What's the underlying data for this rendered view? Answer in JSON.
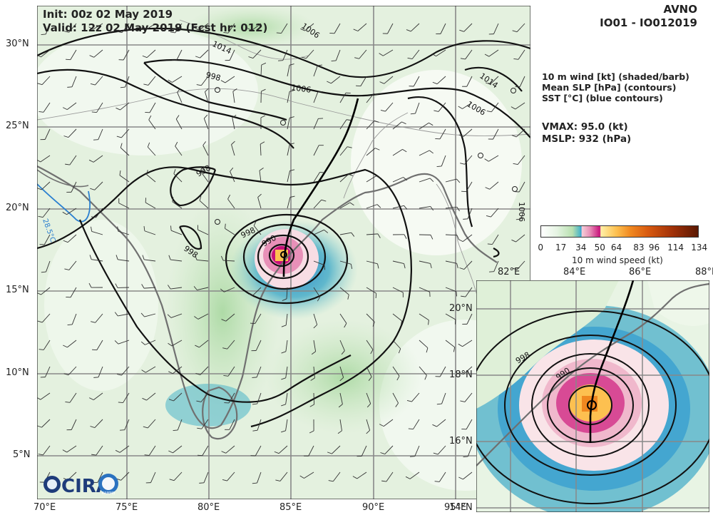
{
  "header": {
    "init": "Init:  00z 02 May 2019",
    "valid": "Valid: 12z 02 May 2019 (Fcst hr: 012)",
    "model": "AVNO",
    "storm": "IO01 - IO012019"
  },
  "legend": {
    "line1": "10 m wind [kt] (shaded/barb)",
    "line2": "Mean SLP [hPa] (contours)",
    "line3": "SST [°C] (blue contours)"
  },
  "stats": {
    "vmax": "VMAX:  95.0 (kt)",
    "mslp": "MSLP:  932 (hPa)"
  },
  "colorbar": {
    "label": "10 m wind speed (kt)",
    "ticks": [
      "0",
      "17",
      "34",
      "50",
      "64",
      "83",
      "96",
      "114",
      "134"
    ],
    "tick_values": [
      0,
      17,
      34,
      50,
      64,
      83,
      96,
      114,
      134
    ],
    "range": [
      0,
      134
    ]
  },
  "main_map": {
    "lon_labels": [
      "70°E",
      "75°E",
      "80°E",
      "85°E",
      "90°E",
      "95°E"
    ],
    "lat_labels": [
      "30°N",
      "25°N",
      "20°N",
      "15°N",
      "10°N",
      "5°N"
    ],
    "contour_labels": [
      "1014",
      "1006",
      "998",
      "1006",
      "1014",
      "1006",
      "998",
      "998",
      "998",
      "990",
      "1006"
    ],
    "sst_label": "28.5°C"
  },
  "inset_map": {
    "lon_labels": [
      "82°E",
      "84°E",
      "86°E",
      "88°E"
    ],
    "lat_labels": [
      "20°N",
      "18°N",
      "16°N",
      "14°N"
    ],
    "contour_labels": [
      "998",
      "990"
    ]
  },
  "logos": {
    "cira": "CIRA",
    "ramm": "RAMMB"
  },
  "colors": {
    "land_green": "#d8ecd2",
    "ocean_light": "#eef7ec",
    "wind_teal": "#3fa9c8",
    "wind_pink": "#e880b0",
    "wind_magenta": "#c0107a",
    "wind_orange": "#f08820",
    "sst_contour": "#2a7fd0",
    "coastline": "#707070"
  }
}
